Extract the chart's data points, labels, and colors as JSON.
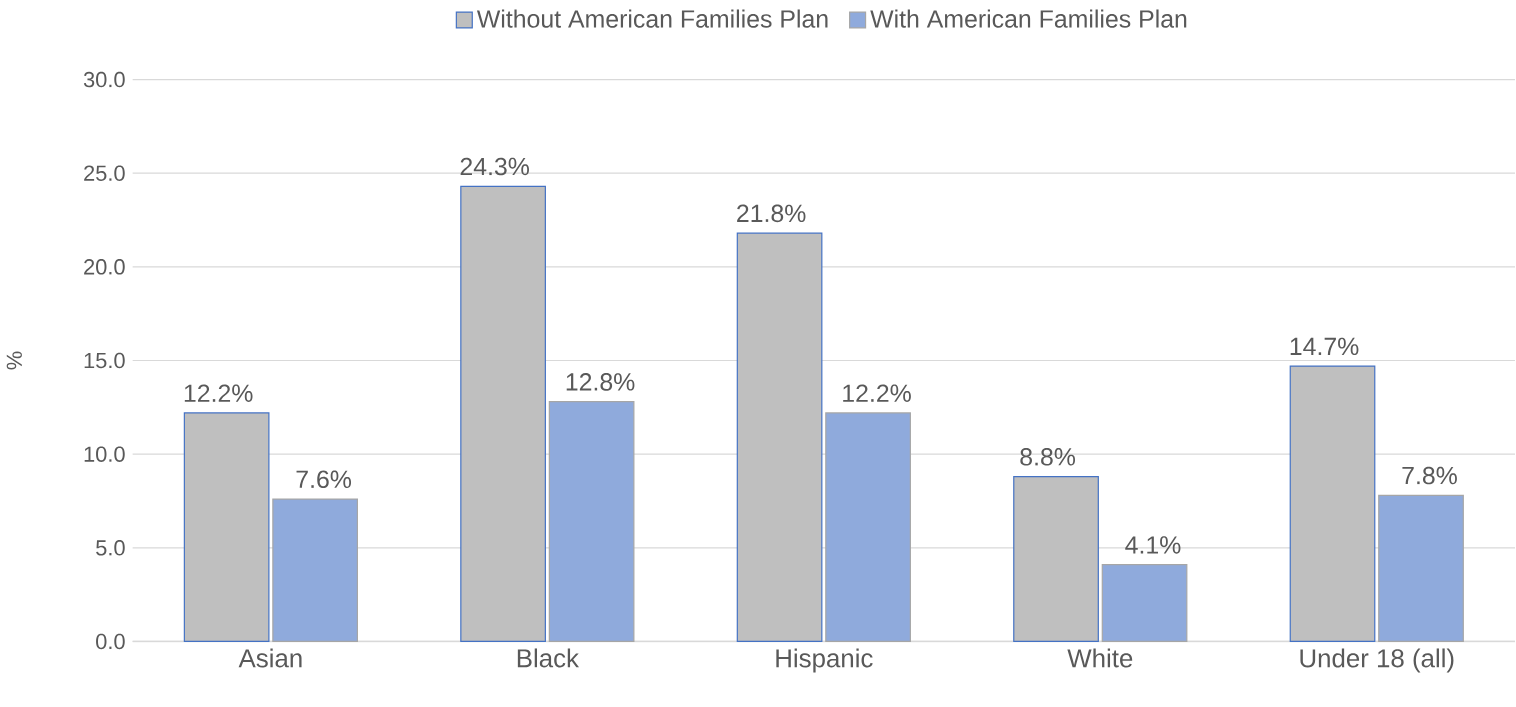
{
  "chart_data": {
    "type": "bar",
    "ylabel": "%",
    "categories": [
      "Asian",
      "Black",
      "Hispanic",
      "White",
      "Under 18 (all)"
    ],
    "series": [
      {
        "name": "Without American Families Plan",
        "color": "#bfbfbf",
        "values": [
          12.2,
          24.3,
          21.8,
          8.8,
          14.7
        ],
        "value_labels": [
          "12.2%",
          "24.3%",
          "21.8%",
          "8.8%",
          "14.7%"
        ]
      },
      {
        "name": "With American Families Plan",
        "color": "#8faadc",
        "values": [
          7.6,
          12.8,
          12.2,
          4.1,
          7.8
        ],
        "value_labels": [
          "7.6%",
          "12.8%",
          "12.2%",
          "4.1%",
          "7.8%"
        ]
      }
    ],
    "ylim": [
      0,
      30
    ],
    "yticks": [
      {
        "value": 0,
        "label": "0.0"
      },
      {
        "value": 5,
        "label": "5.0"
      },
      {
        "value": 10,
        "label": "10.0"
      },
      {
        "value": 15,
        "label": "15.0"
      },
      {
        "value": 20,
        "label": "20.0"
      },
      {
        "value": 25,
        "label": "25.0"
      },
      {
        "value": 30,
        "label": "30.0"
      }
    ],
    "grid": "y",
    "legend": "top"
  }
}
